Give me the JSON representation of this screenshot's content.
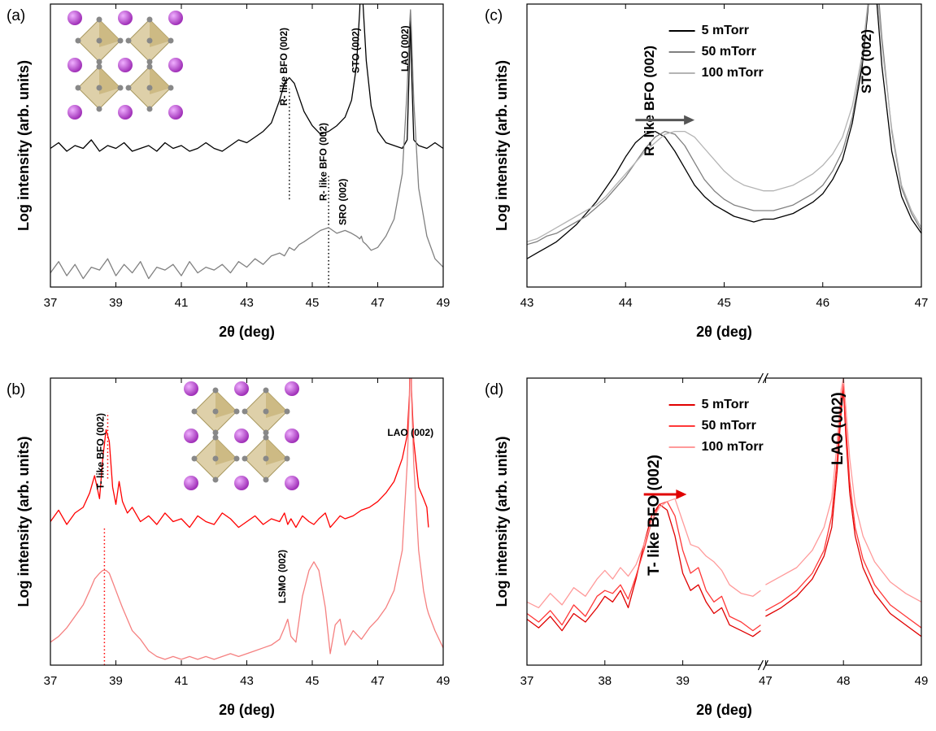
{
  "chart_data": [
    {
      "type": "line",
      "panel_label": "(a)",
      "x_label": "2θ (deg)",
      "y_label": "Log intensity (arb. units)",
      "xlim": [
        37,
        49
      ],
      "xticks": [
        37,
        39,
        41,
        43,
        45,
        47,
        49
      ],
      "ylim": [
        0,
        100
      ],
      "x": [
        37,
        37.25,
        37.5,
        37.75,
        38,
        38.25,
        38.5,
        38.75,
        39,
        39.25,
        39.5,
        39.75,
        40,
        40.25,
        40.5,
        40.75,
        41,
        41.25,
        41.5,
        41.75,
        42,
        42.25,
        42.5,
        42.75,
        43,
        43.25,
        43.5,
        43.75,
        44,
        44.15,
        44.3,
        44.45,
        44.6,
        44.75,
        45,
        45.25,
        45.5,
        45.75,
        46,
        46.2,
        46.35,
        46.45,
        46.5,
        46.55,
        46.65,
        46.8,
        47,
        47.25,
        47.5,
        47.75,
        47.9,
        47.97,
        48,
        48.03,
        48.1,
        48.25,
        48.5,
        48.75,
        49
      ],
      "series": [
        {
          "color": "#000000",
          "values": [
            49,
            51,
            48,
            50,
            49,
            52,
            48,
            50,
            49,
            51,
            48,
            49,
            50,
            48,
            51,
            49,
            50,
            48,
            49,
            51,
            49,
            48,
            50,
            52,
            51,
            53,
            55,
            58,
            66,
            72,
            74,
            72,
            67,
            62,
            57,
            54,
            55,
            57,
            60,
            66,
            78,
            98,
            120,
            100,
            80,
            64,
            55,
            51,
            50,
            49,
            52,
            80,
            96,
            78,
            52,
            50,
            49,
            51,
            49
          ]
        },
        {
          "color": "#808080",
          "values": [
            5,
            9,
            4,
            8,
            3,
            7,
            6,
            10,
            4,
            8,
            5,
            9,
            3,
            7,
            6,
            8,
            4,
            9,
            5,
            7,
            6,
            8,
            5,
            9,
            7,
            10,
            8,
            11,
            12,
            11,
            14,
            13,
            15,
            16,
            18,
            20,
            21,
            19,
            20,
            19,
            18,
            17,
            18,
            16,
            15,
            13,
            14,
            18,
            24,
            40,
            70,
            92,
            98,
            90,
            66,
            35,
            18,
            10,
            7
          ]
        }
      ],
      "annotations": [
        {
          "text": "R- like BFO (002)",
          "x": 44.3
        },
        {
          "text": "STO (002)",
          "x": 46.5
        },
        {
          "text": "LAO (002)",
          "x": 48
        },
        {
          "text": "R- like BFO (002)",
          "x": 45.5
        },
        {
          "text": "SRO (002)",
          "x": 46.1
        }
      ],
      "guides": [
        {
          "x": 44.3,
          "y": [
            31,
            70
          ],
          "color": "#000000"
        },
        {
          "x": 45.5,
          "y": [
            0,
            40
          ],
          "color": "#000000"
        }
      ]
    },
    {
      "type": "line",
      "panel_label": "(b)",
      "x_label": "2θ (deg)",
      "y_label": "Log intensity (arb. units)",
      "xlim": [
        37,
        49
      ],
      "xticks": [
        37,
        39,
        41,
        43,
        45,
        47,
        49
      ],
      "ylim": [
        0,
        100
      ],
      "x": [
        37,
        37.25,
        37.5,
        37.75,
        38,
        38.2,
        38.35,
        38.5,
        38.6,
        38.7,
        38.8,
        38.9,
        39,
        39.1,
        39.2,
        39.35,
        39.5,
        39.75,
        40,
        40.25,
        40.5,
        40.75,
        41,
        41.25,
        41.5,
        41.75,
        42,
        42.25,
        42.5,
        42.75,
        43,
        43.25,
        43.5,
        43.75,
        44,
        44.15,
        44.25,
        44.35,
        44.5,
        44.7,
        44.9,
        45.05,
        45.2,
        45.4,
        45.55,
        45.7,
        45.85,
        46,
        46.25,
        46.5,
        46.75,
        47,
        47.25,
        47.5,
        47.75,
        47.9,
        47.97,
        48,
        48.03,
        48.1,
        48.25,
        48.4,
        48.5,
        48.55,
        48.75,
        49
      ],
      "series": [
        {
          "color": "#ff0000",
          "values": [
            50,
            54,
            49,
            53,
            55,
            60,
            66,
            58,
            72,
            82,
            78,
            62,
            56,
            64,
            57,
            53,
            55,
            50,
            52,
            49,
            53,
            50,
            51,
            48,
            52,
            50,
            49,
            53,
            51,
            48,
            50,
            52,
            49,
            51,
            50,
            53,
            49,
            51,
            48,
            52,
            50,
            49,
            51,
            53,
            48,
            50,
            52,
            51,
            52,
            54,
            55,
            57,
            60,
            64,
            72,
            80,
            94,
            118,
            96,
            78,
            62,
            58,
            55,
            48,
            null,
            null
          ]
        },
        {
          "color": "#f58080",
          "values": [
            8,
            10,
            13,
            17,
            21,
            26,
            30,
            32,
            33,
            33,
            32,
            29,
            26,
            23,
            20,
            16,
            12,
            9,
            5,
            3,
            2,
            3,
            2,
            3,
            2,
            3,
            2,
            3,
            4,
            3,
            4,
            5,
            6,
            7,
            9,
            13,
            16,
            10,
            8,
            24,
            33,
            36,
            33,
            20,
            4,
            14,
            16,
            7,
            12,
            9,
            13,
            16,
            20,
            26,
            40,
            70,
            92,
            110,
            94,
            70,
            40,
            26,
            20,
            18,
            12,
            6
          ]
        }
      ],
      "annotations": [
        {
          "text": "T- like BFO (002)",
          "x": 38.7
        },
        {
          "text": "LAO (002)",
          "x": 48
        },
        {
          "text": "LSMO (002)",
          "x": 44.25
        }
      ],
      "guides": [
        {
          "x": 38.75,
          "y": [
            65,
            88
          ],
          "color": "#ff0000"
        },
        {
          "x": 38.65,
          "y": [
            0,
            48
          ],
          "color": "#ff0000"
        }
      ]
    },
    {
      "type": "line",
      "panel_label": "(c)",
      "x_label": "2θ (deg)",
      "y_label": "Log intensity (arb. units)",
      "xlim": [
        43,
        47
      ],
      "xticks": [
        43,
        44,
        45,
        46,
        47
      ],
      "ylim": [
        0,
        100
      ],
      "legend": "upper center",
      "x": [
        43,
        43.1,
        43.2,
        43.3,
        43.4,
        43.5,
        43.6,
        43.7,
        43.8,
        43.9,
        44,
        44.1,
        44.2,
        44.3,
        44.4,
        44.5,
        44.6,
        44.7,
        44.8,
        44.9,
        45,
        45.1,
        45.2,
        45.3,
        45.4,
        45.5,
        45.6,
        45.7,
        45.8,
        45.9,
        46,
        46.1,
        46.2,
        46.3,
        46.4,
        46.45,
        46.5,
        46.55,
        46.6,
        46.7,
        46.8,
        46.9,
        47
      ],
      "series": [
        {
          "name": "5 mTorr",
          "color": "#000000",
          "values": [
            10,
            12,
            14,
            16,
            19,
            22,
            26,
            30,
            35,
            40,
            46,
            51,
            54,
            55,
            53,
            48,
            42,
            36,
            32,
            29,
            27,
            25,
            24,
            23,
            24,
            24,
            25,
            26,
            28,
            30,
            33,
            38,
            45,
            58,
            78,
            95,
            115,
            100,
            78,
            48,
            32,
            24,
            19
          ]
        },
        {
          "name": "50 mTorr",
          "color": "#808080",
          "values": [
            15,
            16,
            18,
            19,
            21,
            23,
            25,
            28,
            31,
            35,
            39,
            44,
            49,
            53,
            55,
            54,
            50,
            44,
            38,
            34,
            31,
            29,
            28,
            27,
            27,
            27,
            28,
            29,
            31,
            33,
            36,
            41,
            48,
            60,
            80,
            97,
            112,
            110,
            88,
            55,
            35,
            26,
            20
          ]
        },
        {
          "name": "100 mTorr",
          "color": "#b4b4b4",
          "values": [
            16,
            17,
            19,
            21,
            23,
            25,
            27,
            29,
            32,
            36,
            40,
            44,
            48,
            51,
            54,
            55,
            55,
            53,
            49,
            45,
            41,
            38,
            36,
            35,
            34,
            34,
            35,
            36,
            38,
            40,
            43,
            47,
            53,
            64,
            82,
            98,
            115,
            105,
            85,
            56,
            36,
            27,
            21
          ]
        }
      ],
      "annotations": [
        {
          "text": "R- like BFO (002)",
          "x": 44.3
        },
        {
          "text": "STO (002)",
          "x": 46.5
        }
      ],
      "arrow": {
        "from": 44.1,
        "to": 44.7,
        "y": 59,
        "color": "#555555"
      }
    },
    {
      "type": "line",
      "panel_label": "(d)",
      "x_label": "2θ (deg)",
      "y_label": "Log intensity (arb. units)",
      "xlim": [
        37,
        49
      ],
      "xbreak": [
        40,
        47
      ],
      "xticks": [
        37,
        38,
        39,
        47,
        48,
        49
      ],
      "ylim": [
        0,
        100
      ],
      "legend": "upper center",
      "x": [
        37,
        37.15,
        37.3,
        37.45,
        37.6,
        37.75,
        37.9,
        38,
        38.1,
        38.2,
        38.3,
        38.4,
        38.5,
        38.6,
        38.7,
        38.8,
        38.9,
        39,
        39.1,
        39.2,
        39.3,
        39.4,
        39.5,
        39.6,
        39.75,
        39.9,
        40,
        47,
        47.2,
        47.4,
        47.6,
        47.75,
        47.85,
        47.92,
        47.97,
        48,
        48.03,
        48.08,
        48.15,
        48.25,
        48.4,
        48.6,
        48.8,
        49
      ],
      "series": [
        {
          "name": "5 mTorr",
          "color": "#e00000",
          "values": [
            16,
            13,
            17,
            12,
            18,
            15,
            20,
            24,
            22,
            26,
            20,
            30,
            42,
            52,
            56,
            54,
            45,
            32,
            26,
            28,
            22,
            18,
            20,
            14,
            12,
            10,
            12,
            17,
            20,
            24,
            30,
            38,
            48,
            68,
            88,
            96,
            80,
            60,
            45,
            34,
            25,
            18,
            14,
            10
          ]
        },
        {
          "name": "50 mTorr",
          "color": "#ff3838",
          "values": [
            18,
            15,
            19,
            14,
            21,
            17,
            24,
            26,
            25,
            28,
            23,
            31,
            40,
            50,
            56,
            57,
            52,
            40,
            32,
            34,
            26,
            22,
            24,
            17,
            15,
            12,
            14,
            19,
            22,
            26,
            32,
            40,
            52,
            72,
            92,
            98,
            84,
            64,
            48,
            37,
            28,
            21,
            17,
            13
          ]
        },
        {
          "name": "100 mTorr",
          "color": "#ff9a9a",
          "values": [
            22,
            20,
            25,
            21,
            27,
            24,
            30,
            33,
            30,
            34,
            31,
            35,
            42,
            50,
            55,
            57,
            58,
            50,
            42,
            41,
            38,
            36,
            33,
            28,
            25,
            24,
            26,
            28,
            31,
            34,
            40,
            48,
            58,
            78,
            96,
            100,
            90,
            72,
            56,
            45,
            36,
            29,
            25,
            22
          ]
        }
      ],
      "annotations": [
        {
          "text": "T- like BFO (002)",
          "x": 38.7
        },
        {
          "text": "LAO (002)",
          "x": 48
        }
      ],
      "arrow": {
        "from": 38.5,
        "to": 39.05,
        "y": 59.5,
        "color": "#e00000"
      }
    }
  ]
}
